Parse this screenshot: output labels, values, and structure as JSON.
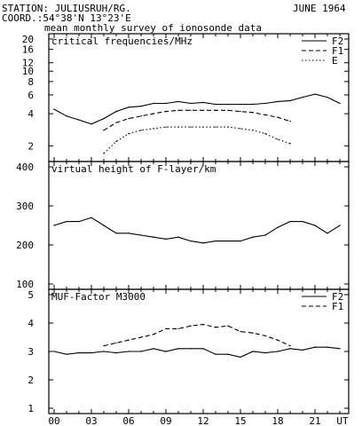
{
  "header": {
    "station": "STATION: JULIUSRUH/RG.",
    "date": "JUNE 1964",
    "coord": "COORD.:54°38'N 13°23'E",
    "subtitle": "mean monthly survey of ionosonde data"
  },
  "colors": {
    "line": "#000000",
    "background": "#ffffff"
  },
  "chart_data": [
    {
      "type": "line",
      "title": "critical frequencies/MHz",
      "x": [
        0,
        1,
        2,
        3,
        4,
        5,
        6,
        7,
        8,
        9,
        10,
        11,
        12,
        13,
        14,
        15,
        16,
        17,
        18,
        19,
        20,
        21,
        22,
        23
      ],
      "x_ticks": [
        "00",
        "03",
        "06",
        "09",
        "12",
        "15",
        "18",
        "21",
        "UT"
      ],
      "y_scale": "log",
      "ylim": [
        1.6,
        20
      ],
      "y_ticks": [
        2,
        4,
        6,
        8,
        10,
        12,
        16,
        20
      ],
      "series": [
        {
          "name": "F2",
          "style": "solid",
          "values": [
            4.4,
            3.8,
            3.5,
            3.2,
            3.6,
            4.2,
            4.6,
            4.7,
            5.0,
            5.0,
            5.2,
            5.0,
            5.1,
            4.9,
            4.9,
            4.9,
            4.9,
            5.0,
            5.2,
            5.3,
            5.7,
            6.1,
            5.7,
            5.0
          ]
        },
        {
          "name": "F1",
          "style": "dashed",
          "values": [
            null,
            null,
            null,
            null,
            2.8,
            3.3,
            3.6,
            3.8,
            4.0,
            4.2,
            4.3,
            4.3,
            4.3,
            4.3,
            4.3,
            4.2,
            4.1,
            3.9,
            3.7,
            3.4,
            null,
            null,
            null,
            null
          ]
        },
        {
          "name": "E",
          "style": "dotted",
          "values": [
            null,
            null,
            null,
            null,
            1.7,
            2.2,
            2.6,
            2.8,
            2.9,
            3.0,
            3.0,
            3.0,
            3.0,
            3.0,
            3.0,
            2.9,
            2.8,
            2.6,
            2.3,
            2.1,
            null,
            null,
            null,
            null
          ]
        }
      ]
    },
    {
      "type": "line",
      "title": "virtual height of F-layer/km",
      "x": [
        0,
        1,
        2,
        3,
        4,
        5,
        6,
        7,
        8,
        9,
        10,
        11,
        12,
        13,
        14,
        15,
        16,
        17,
        18,
        19,
        20,
        21,
        22,
        23
      ],
      "x_ticks": [
        "00",
        "03",
        "06",
        "09",
        "12",
        "15",
        "18",
        "21",
        "UT"
      ],
      "ylim": [
        100,
        400
      ],
      "y_ticks": [
        100,
        200,
        300,
        400
      ],
      "series": [
        {
          "name": "",
          "style": "solid",
          "values": [
            250,
            260,
            260,
            270,
            250,
            230,
            230,
            225,
            220,
            215,
            220,
            210,
            205,
            210,
            210,
            210,
            220,
            225,
            245,
            260,
            260,
            250,
            230,
            250
          ]
        }
      ]
    },
    {
      "type": "line",
      "title": "MUF-Factor M3000",
      "x": [
        0,
        1,
        2,
        3,
        4,
        5,
        6,
        7,
        8,
        9,
        10,
        11,
        12,
        13,
        14,
        15,
        16,
        17,
        18,
        19,
        20,
        21,
        22,
        23
      ],
      "x_ticks": [
        "00",
        "03",
        "06",
        "09",
        "12",
        "15",
        "18",
        "21",
        "UT"
      ],
      "ylim": [
        1,
        5
      ],
      "y_ticks": [
        1,
        2,
        3,
        4,
        5
      ],
      "series": [
        {
          "name": "F2",
          "style": "solid",
          "values": [
            3.0,
            2.9,
            2.95,
            2.95,
            3.0,
            2.95,
            3.0,
            3.0,
            3.1,
            3.0,
            3.1,
            3.1,
            3.1,
            2.9,
            2.9,
            2.8,
            3.0,
            2.95,
            3.0,
            3.1,
            3.05,
            3.15,
            3.15,
            3.1
          ]
        },
        {
          "name": "F1",
          "style": "dashed",
          "values": [
            null,
            null,
            null,
            null,
            3.2,
            3.3,
            3.4,
            3.5,
            3.6,
            3.8,
            3.8,
            3.9,
            3.95,
            3.85,
            3.9,
            3.7,
            3.65,
            3.55,
            3.4,
            3.2,
            null,
            null,
            null,
            null
          ]
        }
      ]
    }
  ]
}
